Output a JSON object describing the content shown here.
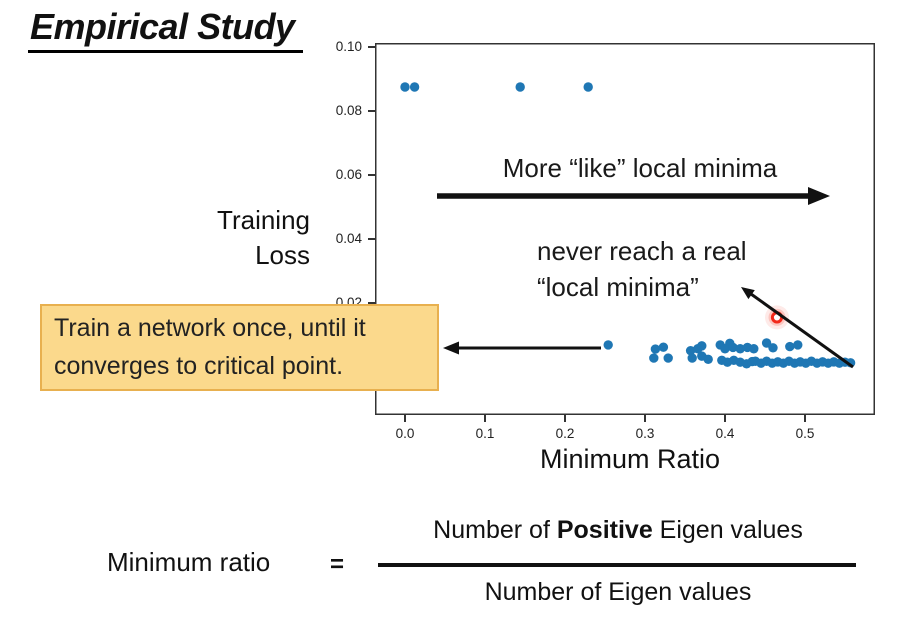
{
  "slide": {
    "title": "Empirical Study"
  },
  "chart": {
    "y_axis_label": {
      "line1": "Training",
      "line2": "Loss"
    },
    "x_axis_label": "Minimum Ratio",
    "annotations": {
      "more_like": "More “like” local minima",
      "never_reach_line1": "never reach a real",
      "never_reach_line2": "“local minima”"
    },
    "callout": {
      "line1": "Train a network once, until it",
      "line2": "converges to critical point.",
      "bg": "#FBD98C",
      "border": "#E8B04F"
    }
  },
  "chart_data": {
    "type": "scatter",
    "title": "",
    "xlabel": "Minimum Ratio",
    "ylabel": "Training Loss",
    "xlim": [
      -0.0375,
      0.5875
    ],
    "ylim": [
      -0.015,
      0.10125
    ],
    "grid": false,
    "legend": false,
    "x_ticks": [
      {
        "v": 0.0,
        "label": "0.0"
      },
      {
        "v": 0.1,
        "label": "0.1"
      },
      {
        "v": 0.2,
        "label": "0.2"
      },
      {
        "v": 0.3,
        "label": "0.3"
      },
      {
        "v": 0.4,
        "label": "0.4"
      },
      {
        "v": 0.5,
        "label": "0.5"
      }
    ],
    "y_ticks": [
      {
        "v": 0.1,
        "label": "0.10"
      },
      {
        "v": 0.08,
        "label": "0.08"
      },
      {
        "v": 0.06,
        "label": "0.06"
      },
      {
        "v": 0.04,
        "label": "0.04"
      },
      {
        "v": 0.02,
        "label": "0.02"
      }
    ],
    "point_color": "#1F77B4",
    "highlight_color": "#F2281A",
    "points": [
      [
        0.0,
        0.0875
      ],
      [
        0.012,
        0.0875
      ],
      [
        0.144,
        0.0875
      ],
      [
        0.229,
        0.0875
      ],
      [
        0.254,
        0.0069
      ],
      [
        0.313,
        0.0056
      ],
      [
        0.323,
        0.0062
      ],
      [
        0.311,
        0.0028
      ],
      [
        0.329,
        0.0028
      ],
      [
        0.357,
        0.0051
      ],
      [
        0.366,
        0.0057
      ],
      [
        0.371,
        0.0066
      ],
      [
        0.359,
        0.0028
      ],
      [
        0.371,
        0.0034
      ],
      [
        0.379,
        0.0024
      ],
      [
        0.394,
        0.0069
      ],
      [
        0.406,
        0.0074
      ],
      [
        0.4,
        0.0057
      ],
      [
        0.41,
        0.0061
      ],
      [
        0.419,
        0.0057
      ],
      [
        0.428,
        0.0061
      ],
      [
        0.436,
        0.0057
      ],
      [
        0.396,
        0.0021
      ],
      [
        0.403,
        0.0015
      ],
      [
        0.411,
        0.0021
      ],
      [
        0.419,
        0.0015
      ],
      [
        0.427,
        0.001
      ],
      [
        0.434,
        0.0017
      ],
      [
        0.452,
        0.0075
      ],
      [
        0.46,
        0.006
      ],
      [
        0.481,
        0.0064
      ],
      [
        0.491,
        0.0069
      ],
      [
        0.438,
        0.0018
      ],
      [
        0.445,
        0.0012
      ],
      [
        0.452,
        0.0018
      ],
      [
        0.459,
        0.0012
      ],
      [
        0.466,
        0.0016
      ],
      [
        0.473,
        0.0012
      ],
      [
        0.48,
        0.0018
      ],
      [
        0.487,
        0.0012
      ],
      [
        0.494,
        0.0016
      ],
      [
        0.501,
        0.0012
      ],
      [
        0.508,
        0.0018
      ],
      [
        0.515,
        0.0012
      ],
      [
        0.522,
        0.0016
      ],
      [
        0.529,
        0.0012
      ],
      [
        0.536,
        0.0016
      ],
      [
        0.543,
        0.0012
      ],
      [
        0.55,
        0.0015
      ],
      [
        0.557,
        0.0013
      ]
    ],
    "highlight_point": [
      0.465,
      0.0155
    ]
  },
  "formula": {
    "lhs": "Minimum ratio",
    "equals": "=",
    "numerator_prefix": "Number of ",
    "numerator_bold": "Positive",
    "numerator_suffix": " Eigen values",
    "denominator": "Number of Eigen values"
  }
}
